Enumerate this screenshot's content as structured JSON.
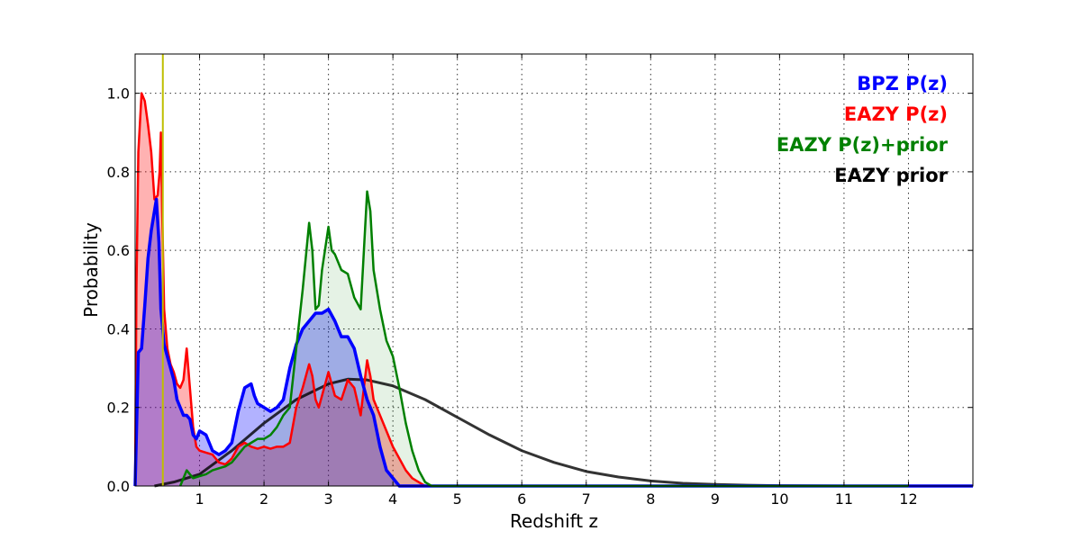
{
  "chart_data": {
    "type": "area",
    "xlabel": "Redshift z",
    "ylabel": "Probability",
    "xlim": [
      0,
      13
    ],
    "ylim": [
      0,
      1.1
    ],
    "xticks": [
      1,
      2,
      3,
      4,
      5,
      6,
      7,
      8,
      9,
      10,
      11,
      12
    ],
    "xtick_labels": [
      "1",
      "2",
      "3",
      "4",
      "5",
      "6",
      "7",
      "8",
      "9",
      "10",
      "11",
      "12"
    ],
    "yticks": [
      0,
      0.2,
      0.4,
      0.6,
      0.8,
      1.0
    ],
    "ytick_labels": [
      "0.0",
      "0.2",
      "0.4",
      "0.6",
      "0.8",
      "1.0"
    ],
    "grid": true,
    "legend_position": "top-right",
    "vertical_line": {
      "x": 0.43,
      "color": "#bfbf00"
    },
    "series": [
      {
        "name": "EAZY prior",
        "color": "#000000",
        "fill": false,
        "points": [
          [
            0.3,
            0.0
          ],
          [
            0.6,
            0.01
          ],
          [
            1.0,
            0.03
          ],
          [
            1.5,
            0.09
          ],
          [
            2.0,
            0.16
          ],
          [
            2.5,
            0.22
          ],
          [
            3.0,
            0.26
          ],
          [
            3.3,
            0.272
          ],
          [
            3.6,
            0.27
          ],
          [
            4.0,
            0.255
          ],
          [
            4.5,
            0.22
          ],
          [
            5.0,
            0.175
          ],
          [
            5.5,
            0.13
          ],
          [
            6.0,
            0.09
          ],
          [
            6.5,
            0.06
          ],
          [
            7.0,
            0.037
          ],
          [
            7.5,
            0.023
          ],
          [
            8.0,
            0.013
          ],
          [
            8.5,
            0.007
          ],
          [
            9.0,
            0.004
          ],
          [
            9.5,
            0.002
          ],
          [
            10.0,
            0.001
          ],
          [
            11.0,
            0.0
          ],
          [
            12.0,
            0.0
          ]
        ]
      },
      {
        "name": "EAZY P(z)",
        "color": "#ff0000",
        "fill": true,
        "points": [
          [
            0.0,
            0.0
          ],
          [
            0.02,
            0.5
          ],
          [
            0.05,
            0.85
          ],
          [
            0.1,
            1.0
          ],
          [
            0.15,
            0.98
          ],
          [
            0.2,
            0.92
          ],
          [
            0.25,
            0.85
          ],
          [
            0.3,
            0.73
          ],
          [
            0.35,
            0.74
          ],
          [
            0.38,
            0.8
          ],
          [
            0.4,
            0.9
          ],
          [
            0.42,
            0.7
          ],
          [
            0.45,
            0.45
          ],
          [
            0.5,
            0.35
          ],
          [
            0.55,
            0.31
          ],
          [
            0.6,
            0.29
          ],
          [
            0.65,
            0.26
          ],
          [
            0.7,
            0.25
          ],
          [
            0.75,
            0.27
          ],
          [
            0.8,
            0.35
          ],
          [
            0.85,
            0.25
          ],
          [
            0.9,
            0.15
          ],
          [
            0.95,
            0.1
          ],
          [
            1.0,
            0.09
          ],
          [
            1.1,
            0.085
          ],
          [
            1.2,
            0.08
          ],
          [
            1.3,
            0.06
          ],
          [
            1.4,
            0.055
          ],
          [
            1.5,
            0.07
          ],
          [
            1.6,
            0.1
          ],
          [
            1.7,
            0.11
          ],
          [
            1.8,
            0.1
          ],
          [
            1.9,
            0.095
          ],
          [
            2.0,
            0.1
          ],
          [
            2.1,
            0.095
          ],
          [
            2.2,
            0.1
          ],
          [
            2.3,
            0.1
          ],
          [
            2.4,
            0.11
          ],
          [
            2.5,
            0.2
          ],
          [
            2.6,
            0.25
          ],
          [
            2.7,
            0.31
          ],
          [
            2.75,
            0.28
          ],
          [
            2.8,
            0.22
          ],
          [
            2.85,
            0.2
          ],
          [
            2.9,
            0.23
          ],
          [
            3.0,
            0.29
          ],
          [
            3.1,
            0.23
          ],
          [
            3.2,
            0.22
          ],
          [
            3.3,
            0.27
          ],
          [
            3.4,
            0.25
          ],
          [
            3.5,
            0.18
          ],
          [
            3.55,
            0.25
          ],
          [
            3.6,
            0.32
          ],
          [
            3.65,
            0.28
          ],
          [
            3.7,
            0.22
          ],
          [
            3.8,
            0.18
          ],
          [
            3.9,
            0.14
          ],
          [
            4.0,
            0.1
          ],
          [
            4.1,
            0.07
          ],
          [
            4.2,
            0.04
          ],
          [
            4.3,
            0.02
          ],
          [
            4.4,
            0.01
          ],
          [
            4.5,
            0.0
          ]
        ]
      },
      {
        "name": "BPZ P(z)",
        "color": "#0000ff",
        "fill": true,
        "points": [
          [
            0.0,
            0.0
          ],
          [
            0.03,
            0.2
          ],
          [
            0.05,
            0.34
          ],
          [
            0.1,
            0.35
          ],
          [
            0.15,
            0.46
          ],
          [
            0.2,
            0.58
          ],
          [
            0.25,
            0.65
          ],
          [
            0.3,
            0.7
          ],
          [
            0.33,
            0.73
          ],
          [
            0.37,
            0.62
          ],
          [
            0.4,
            0.45
          ],
          [
            0.45,
            0.36
          ],
          [
            0.5,
            0.33
          ],
          [
            0.55,
            0.3
          ],
          [
            0.6,
            0.27
          ],
          [
            0.65,
            0.22
          ],
          [
            0.7,
            0.2
          ],
          [
            0.75,
            0.18
          ],
          [
            0.8,
            0.18
          ],
          [
            0.85,
            0.17
          ],
          [
            0.9,
            0.13
          ],
          [
            0.95,
            0.12
          ],
          [
            1.0,
            0.14
          ],
          [
            1.1,
            0.13
          ],
          [
            1.2,
            0.09
          ],
          [
            1.3,
            0.08
          ],
          [
            1.4,
            0.09
          ],
          [
            1.5,
            0.11
          ],
          [
            1.6,
            0.19
          ],
          [
            1.7,
            0.25
          ],
          [
            1.8,
            0.26
          ],
          [
            1.85,
            0.23
          ],
          [
            1.9,
            0.21
          ],
          [
            2.0,
            0.2
          ],
          [
            2.1,
            0.19
          ],
          [
            2.2,
            0.2
          ],
          [
            2.3,
            0.22
          ],
          [
            2.4,
            0.3
          ],
          [
            2.5,
            0.36
          ],
          [
            2.6,
            0.4
          ],
          [
            2.7,
            0.42
          ],
          [
            2.8,
            0.44
          ],
          [
            2.9,
            0.44
          ],
          [
            3.0,
            0.45
          ],
          [
            3.1,
            0.42
          ],
          [
            3.2,
            0.38
          ],
          [
            3.3,
            0.38
          ],
          [
            3.4,
            0.35
          ],
          [
            3.5,
            0.28
          ],
          [
            3.6,
            0.22
          ],
          [
            3.7,
            0.18
          ],
          [
            3.8,
            0.1
          ],
          [
            3.9,
            0.04
          ],
          [
            4.0,
            0.02
          ],
          [
            4.1,
            0.0
          ],
          [
            11.9,
            0.0
          ],
          [
            13.0,
            0.0
          ]
        ]
      },
      {
        "name": "EAZY P(z)+prior",
        "color": "#008000",
        "fill": true,
        "points": [
          [
            0.7,
            0.0
          ],
          [
            0.75,
            0.02
          ],
          [
            0.8,
            0.04
          ],
          [
            0.85,
            0.03
          ],
          [
            0.9,
            0.02
          ],
          [
            1.0,
            0.025
          ],
          [
            1.1,
            0.03
          ],
          [
            1.2,
            0.04
          ],
          [
            1.3,
            0.045
          ],
          [
            1.4,
            0.05
          ],
          [
            1.5,
            0.06
          ],
          [
            1.6,
            0.08
          ],
          [
            1.7,
            0.1
          ],
          [
            1.8,
            0.11
          ],
          [
            1.9,
            0.12
          ],
          [
            2.0,
            0.12
          ],
          [
            2.1,
            0.13
          ],
          [
            2.2,
            0.15
          ],
          [
            2.3,
            0.18
          ],
          [
            2.4,
            0.2
          ],
          [
            2.5,
            0.35
          ],
          [
            2.6,
            0.5
          ],
          [
            2.7,
            0.67
          ],
          [
            2.75,
            0.6
          ],
          [
            2.8,
            0.45
          ],
          [
            2.85,
            0.46
          ],
          [
            2.9,
            0.55
          ],
          [
            3.0,
            0.66
          ],
          [
            3.05,
            0.6
          ],
          [
            3.1,
            0.59
          ],
          [
            3.2,
            0.55
          ],
          [
            3.3,
            0.54
          ],
          [
            3.4,
            0.48
          ],
          [
            3.5,
            0.45
          ],
          [
            3.55,
            0.6
          ],
          [
            3.6,
            0.75
          ],
          [
            3.65,
            0.7
          ],
          [
            3.7,
            0.55
          ],
          [
            3.8,
            0.45
          ],
          [
            3.9,
            0.37
          ],
          [
            4.0,
            0.33
          ],
          [
            4.1,
            0.25
          ],
          [
            4.2,
            0.16
          ],
          [
            4.3,
            0.09
          ],
          [
            4.4,
            0.04
          ],
          [
            4.5,
            0.01
          ],
          [
            4.6,
            0.0
          ],
          [
            12.0,
            0.0
          ]
        ]
      }
    ],
    "legend": [
      {
        "label": "BPZ P(z)",
        "color": "#0000ff"
      },
      {
        "label": "EAZY P(z)",
        "color": "#ff0000"
      },
      {
        "label": "EAZY P(z)+prior",
        "color": "#008000"
      },
      {
        "label": "EAZY prior",
        "color": "#000000"
      }
    ]
  }
}
